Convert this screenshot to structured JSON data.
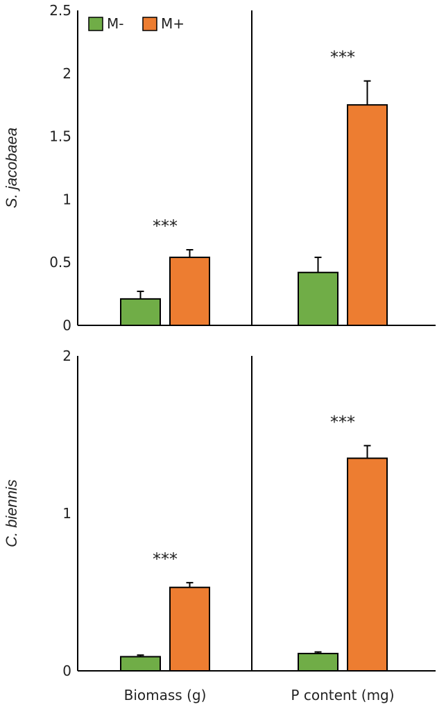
{
  "chart_data": [
    {
      "type": "bar",
      "ylabel": "S. jacobaea",
      "ylim": [
        0,
        2.5
      ],
      "yticks": [
        "0",
        "0.5",
        "1",
        "1.5",
        "2",
        "2.5"
      ],
      "groups": [
        "Biomass (g)",
        "P content (mg)"
      ],
      "series": [
        {
          "name": "M-",
          "color": "#70ad47",
          "values": [
            0.21,
            0.42
          ],
          "errors": [
            0.06,
            0.12
          ]
        },
        {
          "name": "M+",
          "color": "#ed7d31",
          "values": [
            0.54,
            1.75
          ],
          "errors": [
            0.06,
            0.19
          ]
        }
      ],
      "annotations": [
        "***",
        "***"
      ],
      "legend": "top-left"
    },
    {
      "type": "bar",
      "ylabel": "C. biennis",
      "ylim": [
        0,
        2
      ],
      "yticks": [
        "0",
        "1",
        "2"
      ],
      "groups": [
        "Biomass (g)",
        "P content (mg)"
      ],
      "series": [
        {
          "name": "M-",
          "color": "#70ad47",
          "values": [
            0.09,
            0.11
          ],
          "errors": [
            0.01,
            0.01
          ]
        },
        {
          "name": "M+",
          "color": "#ed7d31",
          "values": [
            0.53,
            1.35
          ],
          "errors": [
            0.03,
            0.08
          ]
        }
      ],
      "annotations": [
        "***",
        "***"
      ]
    }
  ]
}
